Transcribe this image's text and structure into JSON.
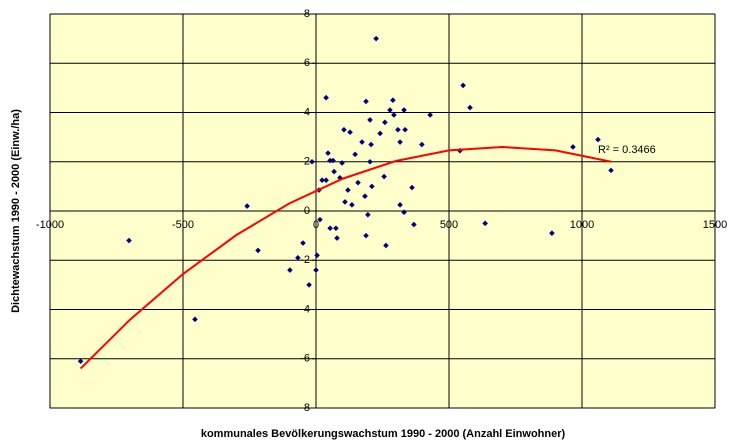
{
  "chart_data": {
    "type": "scatter",
    "xlabel": "kommunales Bevölkerungswachstum 1990 - 2000 (Anzahl Einwohner)",
    "ylabel": "Dichtewachstum 1990 - 2000 (Einw./ha)",
    "color": "#000080",
    "xlim": [
      -1000,
      1500
    ],
    "ylim": [
      -8,
      8
    ],
    "xticks": [
      -1000,
      -500,
      0,
      500,
      1000,
      1500
    ],
    "yticks": [
      -8,
      -6,
      -4,
      -2,
      0,
      2,
      4,
      6,
      8
    ],
    "grid": true,
    "x": [
      -885,
      -703,
      -259,
      -455,
      -218,
      -98,
      -68,
      -49,
      -26,
      -15,
      0,
      4,
      11,
      15,
      23,
      38,
      38,
      45,
      53,
      53,
      68,
      75,
      90,
      98,
      105,
      109,
      120,
      128,
      64,
      79,
      135,
      147,
      158,
      173,
      188,
      184,
      188,
      203,
      207,
      210,
      203,
      195,
      226,
      241,
      256,
      259,
      278,
      293,
      316,
      308,
      289,
      331,
      335,
      316,
      331,
      361,
      368,
      398,
      429,
      263,
      553,
      579,
      541,
      636,
      887,
      966,
      1060,
      1109
    ],
    "values": [
      -6.1,
      -1.2,
      0.2,
      -4.4,
      -1.6,
      -2.4,
      -1.9,
      -1.3,
      -3.0,
      2.0,
      -2.4,
      -1.8,
      0.85,
      -0.35,
      1.25,
      4.6,
      1.25,
      2.35,
      2.05,
      -0.7,
      1.6,
      -0.7,
      1.35,
      1.95,
      3.3,
      0.37,
      0.85,
      3.2,
      2.05,
      -1.1,
      0.25,
      2.3,
      1.15,
      2.8,
      4.45,
      0.6,
      -1.0,
      3.7,
      2.7,
      1.0,
      2.0,
      -0.15,
      7.0,
      3.15,
      1.4,
      3.6,
      4.1,
      3.9,
      2.8,
      3.3,
      4.5,
      4.1,
      3.3,
      0.25,
      -0.05,
      0.95,
      -0.55,
      2.7,
      3.9,
      -1.4,
      5.1,
      4.2,
      2.45,
      -0.5,
      -0.9,
      2.6,
      2.9,
      1.65
    ],
    "trendline": {
      "color": "#ff0000",
      "label": "R² = 0.3466",
      "x": [
        -885,
        -700,
        -500,
        -300,
        -100,
        100,
        300,
        500,
        700,
        900,
        1110
      ],
      "values": [
        -6.4,
        -4.42,
        -2.56,
        -0.98,
        0.31,
        1.31,
        2.03,
        2.46,
        2.6,
        2.46,
        2.0
      ]
    }
  }
}
